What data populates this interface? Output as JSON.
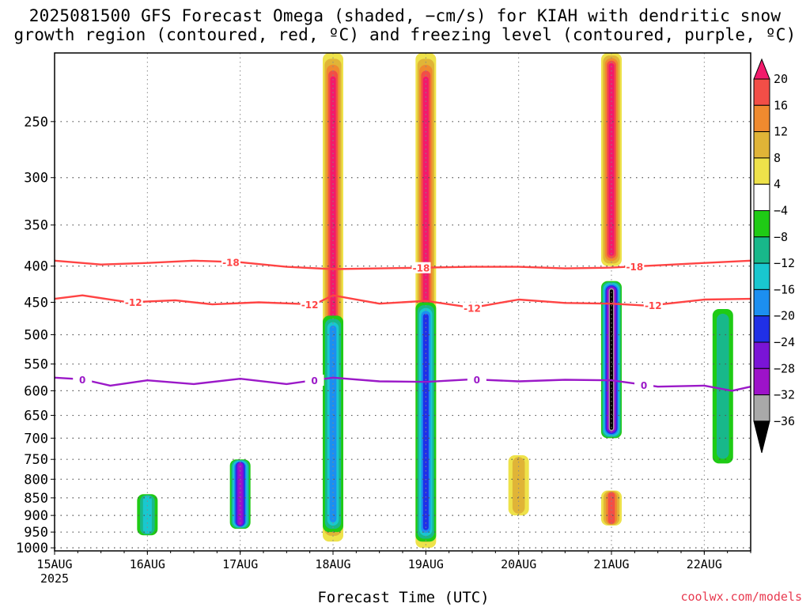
{
  "title_line1": "2025081500 GFS Forecast Omega (shaded, −cm/s) for KIAH with dendritic snow",
  "title_line2": "growth region (contoured, red, ºC) and freezing level (contoured, purple, ºC)",
  "xaxis_title": "Forecast Time (UTC)",
  "credit": "coolwx.com/models",
  "colors": {
    "dgz_contour": "#ff4444",
    "freezing_contour": "#9b19c8",
    "ground": "#a0522d",
    "grid": "#555555"
  },
  "chart_data": {
    "type": "heatmap",
    "title": "2025081500 GFS Forecast Omega (shaded, −cm/s) for KIAH with dendritic snow growth region (contoured, red, ºC) and freezing level (contoured, purple, ºC)",
    "xlabel": "Forecast Time (UTC)",
    "x_ticks": [
      "15AUG",
      "16AUG",
      "17AUG",
      "18AUG",
      "19AUG",
      "20AUG",
      "21AUG",
      "22AUG"
    ],
    "x_year": "2025",
    "x_range_days": [
      0,
      7.5
    ],
    "y_ticks": [
      250,
      300,
      350,
      400,
      450,
      500,
      550,
      600,
      650,
      700,
      750,
      800,
      850,
      900,
      950,
      1000
    ],
    "y_range_hpa": [
      200,
      1010
    ],
    "y_scale": "log-pressure (reversed)",
    "grid": true,
    "colorbar": {
      "labels": [
        "20",
        "16",
        "12",
        "8",
        "4",
        "−4",
        "−8",
        "−12",
        "−16",
        "−20",
        "−24",
        "−28",
        "−32",
        "−36"
      ],
      "bins": [
        {
          "color": "#f21a6b"
        },
        {
          "color": "#f24e47"
        },
        {
          "color": "#ef8a2f"
        },
        {
          "color": "#e0b437"
        },
        {
          "color": "#eee24a"
        },
        {
          "color": "#ffffff"
        },
        {
          "color": "#1fcb15"
        },
        {
          "color": "#18b88a"
        },
        {
          "color": "#19c7cf"
        },
        {
          "color": "#1c8ff0"
        },
        {
          "color": "#2030e6"
        },
        {
          "color": "#7a14d6"
        },
        {
          "color": "#9d12c9"
        },
        {
          "color": "#a9a9a9"
        },
        {
          "color": "#000000"
        }
      ]
    },
    "omega_features": [
      {
        "day": 4.0,
        "p_top": 200,
        "p_bot": 1000,
        "value": 20
      },
      {
        "day": 4.0,
        "p_top": 450,
        "p_bot": 980,
        "value": -20
      },
      {
        "day": 3.0,
        "p_top": 200,
        "p_bot": 980,
        "value": 20
      },
      {
        "day": 3.0,
        "p_top": 470,
        "p_bot": 950,
        "value": -18
      },
      {
        "day": 2.0,
        "p_top": 750,
        "p_bot": 940,
        "value": -30
      },
      {
        "day": 1.0,
        "p_top": 840,
        "p_bot": 960,
        "value": -14
      },
      {
        "day": 6.0,
        "p_top": 420,
        "p_bot": 700,
        "value": -36
      },
      {
        "day": 6.0,
        "p_top": 200,
        "p_bot": 400,
        "value": 20
      },
      {
        "day": 6.0,
        "p_top": 830,
        "p_bot": 930,
        "value": 16
      },
      {
        "day": 5.0,
        "p_top": 740,
        "p_bot": 900,
        "value": 10
      },
      {
        "day": 7.2,
        "p_top": 460,
        "p_bot": 760,
        "value": -8
      }
    ],
    "contours": [
      {
        "label": "-18",
        "color": "#ff4444",
        "label_days": [
          1.9,
          3.95,
          6.25
        ],
        "points": [
          [
            0,
            393
          ],
          [
            0.5,
            398
          ],
          [
            1.0,
            396
          ],
          [
            1.5,
            393
          ],
          [
            2.0,
            395
          ],
          [
            2.5,
            401
          ],
          [
            3.0,
            404
          ],
          [
            3.5,
            403
          ],
          [
            4.0,
            402
          ],
          [
            4.5,
            401
          ],
          [
            5.0,
            401
          ],
          [
            5.5,
            403
          ],
          [
            6.0,
            402
          ],
          [
            6.5,
            399
          ],
          [
            7.0,
            396
          ],
          [
            7.5,
            393
          ]
        ]
      },
      {
        "label": "-12",
        "color": "#ff4444",
        "label_days": [
          0.85,
          2.75,
          4.5,
          6.45
        ],
        "points": [
          [
            0,
            445
          ],
          [
            0.3,
            440
          ],
          [
            0.8,
            450
          ],
          [
            1.3,
            447
          ],
          [
            1.7,
            453
          ],
          [
            2.2,
            450
          ],
          [
            2.8,
            453
          ],
          [
            3.0,
            440
          ],
          [
            3.5,
            452
          ],
          [
            4.0,
            448
          ],
          [
            4.5,
            458
          ],
          [
            5.0,
            446
          ],
          [
            5.5,
            451
          ],
          [
            6.0,
            452
          ],
          [
            6.4,
            455
          ],
          [
            7.0,
            446
          ],
          [
            7.5,
            445
          ]
        ]
      },
      {
        "label": "0",
        "color": "#9b19c8",
        "label_days": [
          0.3,
          2.8,
          4.55,
          6.35
        ],
        "points": [
          [
            0,
            575
          ],
          [
            0.3,
            578
          ],
          [
            0.6,
            590
          ],
          [
            1.0,
            580
          ],
          [
            1.5,
            587
          ],
          [
            2.0,
            577
          ],
          [
            2.5,
            587
          ],
          [
            3.0,
            575
          ],
          [
            3.5,
            582
          ],
          [
            4.0,
            583
          ],
          [
            4.5,
            578
          ],
          [
            5.0,
            582
          ],
          [
            5.5,
            579
          ],
          [
            6.0,
            580
          ],
          [
            6.5,
            592
          ],
          [
            7.0,
            590
          ],
          [
            7.3,
            600
          ],
          [
            7.5,
            592
          ]
        ]
      }
    ]
  }
}
